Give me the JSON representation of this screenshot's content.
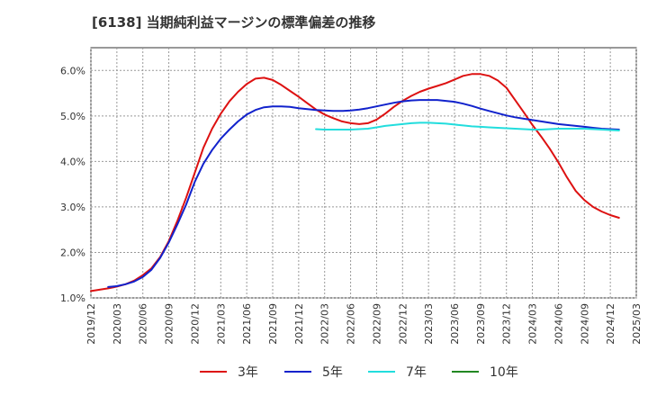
{
  "chart_data": {
    "type": "line",
    "title": "[6138]  当期純利益マージンの標準偏差の推移",
    "xlabel": "",
    "ylabel": "",
    "ylim": [
      1.0,
      6.5
    ],
    "y_ticks": [
      "1.0%",
      "2.0%",
      "3.0%",
      "4.0%",
      "5.0%",
      "6.0%"
    ],
    "y_tick_values": [
      1.0,
      2.0,
      3.0,
      4.0,
      5.0,
      6.0
    ],
    "x_range": [
      "2019-12",
      "2025-03"
    ],
    "x_ticks": [
      "2019/12",
      "2020/03",
      "2020/06",
      "2020/09",
      "2020/12",
      "2021/03",
      "2021/06",
      "2021/09",
      "2021/12",
      "2022/03",
      "2022/06",
      "2022/09",
      "2022/12",
      "2023/03",
      "2023/06",
      "2023/09",
      "2023/12",
      "2024/03",
      "2024/06",
      "2024/09",
      "2024/12",
      "2025/03"
    ],
    "grid": true,
    "legend_position": "bottom",
    "series": [
      {
        "name": "3年",
        "color": "#dd1111",
        "points": [
          [
            "2019-12",
            1.15
          ],
          [
            "2020-01",
            1.18
          ],
          [
            "2020-02",
            1.21
          ],
          [
            "2020-03",
            1.25
          ],
          [
            "2020-04",
            1.3
          ],
          [
            "2020-05",
            1.38
          ],
          [
            "2020-06",
            1.5
          ],
          [
            "2020-07",
            1.65
          ],
          [
            "2020-08",
            1.9
          ],
          [
            "2020-09",
            2.25
          ],
          [
            "2020-10",
            2.7
          ],
          [
            "2020-11",
            3.2
          ],
          [
            "2020-12",
            3.75
          ],
          [
            "2021-01",
            4.3
          ],
          [
            "2021-02",
            4.72
          ],
          [
            "2021-03",
            5.05
          ],
          [
            "2021-04",
            5.32
          ],
          [
            "2021-05",
            5.53
          ],
          [
            "2021-06",
            5.7
          ],
          [
            "2021-07",
            5.82
          ],
          [
            "2021-08",
            5.84
          ],
          [
            "2021-09",
            5.79
          ],
          [
            "2021-10",
            5.68
          ],
          [
            "2021-11",
            5.55
          ],
          [
            "2021-12",
            5.42
          ],
          [
            "2022-01",
            5.28
          ],
          [
            "2022-02",
            5.14
          ],
          [
            "2022-03",
            5.03
          ],
          [
            "2022-04",
            4.95
          ],
          [
            "2022-05",
            4.88
          ],
          [
            "2022-06",
            4.84
          ],
          [
            "2022-07",
            4.82
          ],
          [
            "2022-08",
            4.84
          ],
          [
            "2022-09",
            4.92
          ],
          [
            "2022-10",
            5.05
          ],
          [
            "2022-11",
            5.2
          ],
          [
            "2022-12",
            5.33
          ],
          [
            "2023-01",
            5.44
          ],
          [
            "2023-02",
            5.53
          ],
          [
            "2023-03",
            5.6
          ],
          [
            "2023-04",
            5.66
          ],
          [
            "2023-05",
            5.72
          ],
          [
            "2023-06",
            5.8
          ],
          [
            "2023-07",
            5.88
          ],
          [
            "2023-08",
            5.92
          ],
          [
            "2023-09",
            5.92
          ],
          [
            "2023-10",
            5.88
          ],
          [
            "2023-11",
            5.78
          ],
          [
            "2023-12",
            5.62
          ],
          [
            "2024-01",
            5.35
          ],
          [
            "2024-02",
            5.08
          ],
          [
            "2024-03",
            4.8
          ],
          [
            "2024-04",
            4.55
          ],
          [
            "2024-05",
            4.28
          ],
          [
            "2024-06",
            3.98
          ],
          [
            "2024-07",
            3.65
          ],
          [
            "2024-08",
            3.35
          ],
          [
            "2024-09",
            3.15
          ],
          [
            "2024-10",
            3.0
          ],
          [
            "2024-11",
            2.9
          ],
          [
            "2024-12",
            2.82
          ],
          [
            "2025-01",
            2.76
          ]
        ]
      },
      {
        "name": "5年",
        "color": "#1122cc",
        "points": [
          [
            "2020-02",
            1.24
          ],
          [
            "2020-03",
            1.26
          ],
          [
            "2020-04",
            1.3
          ],
          [
            "2020-05",
            1.36
          ],
          [
            "2020-06",
            1.46
          ],
          [
            "2020-07",
            1.62
          ],
          [
            "2020-08",
            1.88
          ],
          [
            "2020-09",
            2.22
          ],
          [
            "2020-10",
            2.62
          ],
          [
            "2020-11",
            3.05
          ],
          [
            "2020-12",
            3.55
          ],
          [
            "2021-01",
            3.95
          ],
          [
            "2021-02",
            4.25
          ],
          [
            "2021-03",
            4.5
          ],
          [
            "2021-04",
            4.7
          ],
          [
            "2021-05",
            4.88
          ],
          [
            "2021-06",
            5.03
          ],
          [
            "2021-07",
            5.13
          ],
          [
            "2021-08",
            5.19
          ],
          [
            "2021-09",
            5.21
          ],
          [
            "2021-10",
            5.21
          ],
          [
            "2021-11",
            5.2
          ],
          [
            "2021-12",
            5.17
          ],
          [
            "2022-01",
            5.15
          ],
          [
            "2022-02",
            5.13
          ],
          [
            "2022-03",
            5.12
          ],
          [
            "2022-04",
            5.11
          ],
          [
            "2022-05",
            5.11
          ],
          [
            "2022-06",
            5.12
          ],
          [
            "2022-07",
            5.14
          ],
          [
            "2022-08",
            5.17
          ],
          [
            "2022-09",
            5.21
          ],
          [
            "2022-10",
            5.25
          ],
          [
            "2022-11",
            5.29
          ],
          [
            "2022-12",
            5.32
          ],
          [
            "2023-01",
            5.34
          ],
          [
            "2023-02",
            5.35
          ],
          [
            "2023-03",
            5.35
          ],
          [
            "2023-04",
            5.35
          ],
          [
            "2023-05",
            5.33
          ],
          [
            "2023-06",
            5.31
          ],
          [
            "2023-07",
            5.27
          ],
          [
            "2023-08",
            5.22
          ],
          [
            "2023-09",
            5.16
          ],
          [
            "2023-10",
            5.11
          ],
          [
            "2023-11",
            5.06
          ],
          [
            "2023-12",
            5.01
          ],
          [
            "2024-01",
            4.97
          ],
          [
            "2024-02",
            4.94
          ],
          [
            "2024-03",
            4.91
          ],
          [
            "2024-04",
            4.88
          ],
          [
            "2024-05",
            4.85
          ],
          [
            "2024-06",
            4.82
          ],
          [
            "2024-07",
            4.8
          ],
          [
            "2024-08",
            4.78
          ],
          [
            "2024-09",
            4.76
          ],
          [
            "2024-10",
            4.74
          ],
          [
            "2024-11",
            4.72
          ],
          [
            "2024-12",
            4.71
          ],
          [
            "2025-01",
            4.7
          ]
        ]
      },
      {
        "name": "7年",
        "color": "#22dddd",
        "points": [
          [
            "2022-02",
            4.71
          ],
          [
            "2022-03",
            4.7
          ],
          [
            "2022-04",
            4.7
          ],
          [
            "2022-05",
            4.7
          ],
          [
            "2022-06",
            4.7
          ],
          [
            "2022-07",
            4.71
          ],
          [
            "2022-08",
            4.72
          ],
          [
            "2022-09",
            4.75
          ],
          [
            "2022-10",
            4.78
          ],
          [
            "2022-11",
            4.8
          ],
          [
            "2022-12",
            4.82
          ],
          [
            "2023-01",
            4.84
          ],
          [
            "2023-02",
            4.85
          ],
          [
            "2023-03",
            4.85
          ],
          [
            "2023-04",
            4.84
          ],
          [
            "2023-05",
            4.83
          ],
          [
            "2023-06",
            4.81
          ],
          [
            "2023-07",
            4.79
          ],
          [
            "2023-08",
            4.77
          ],
          [
            "2023-09",
            4.76
          ],
          [
            "2023-10",
            4.75
          ],
          [
            "2023-11",
            4.74
          ],
          [
            "2023-12",
            4.73
          ],
          [
            "2024-01",
            4.72
          ],
          [
            "2024-02",
            4.71
          ],
          [
            "2024-03",
            4.7
          ],
          [
            "2024-04",
            4.7
          ],
          [
            "2024-05",
            4.71
          ],
          [
            "2024-06",
            4.72
          ],
          [
            "2024-07",
            4.72
          ],
          [
            "2024-08",
            4.72
          ],
          [
            "2024-09",
            4.72
          ],
          [
            "2024-10",
            4.71
          ],
          [
            "2024-11",
            4.7
          ],
          [
            "2024-12",
            4.69
          ],
          [
            "2025-01",
            4.68
          ]
        ]
      },
      {
        "name": "10年",
        "color": "#228822",
        "points": []
      }
    ]
  }
}
